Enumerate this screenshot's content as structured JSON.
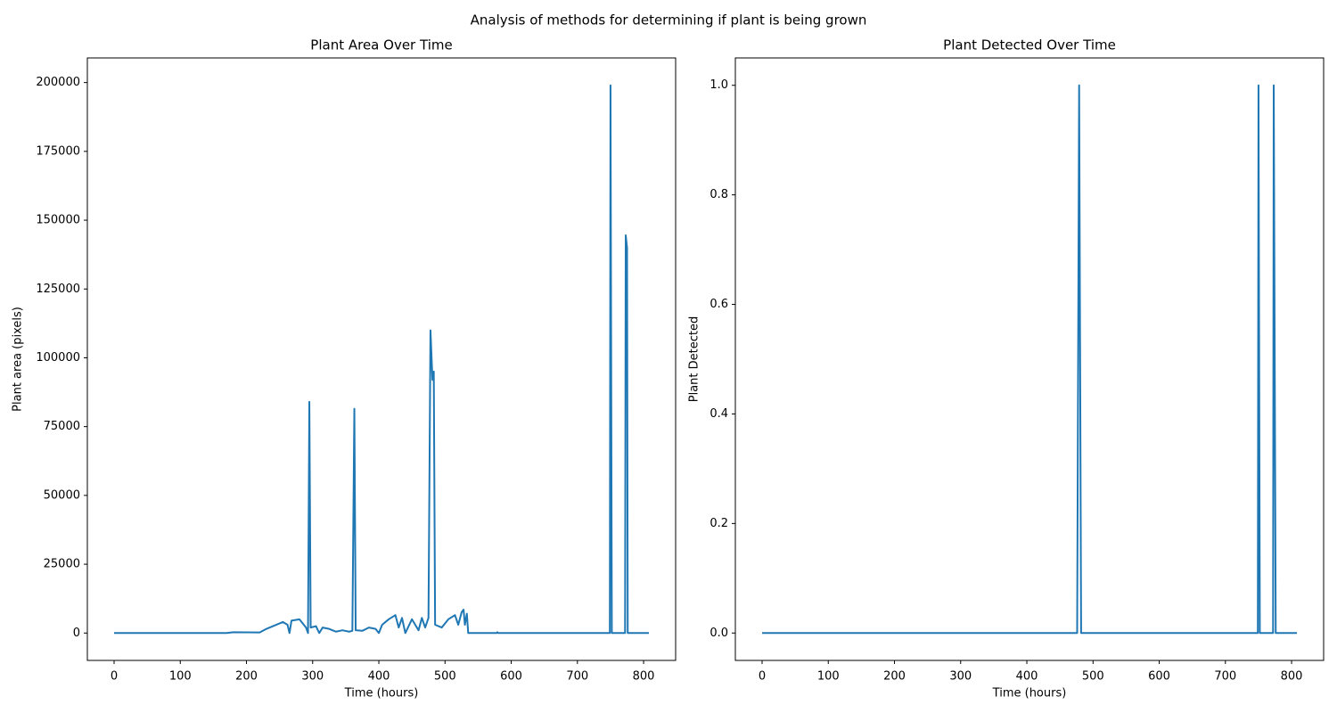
{
  "title": "Analysis of methods for determining if plant is being grown",
  "chart_data": [
    {
      "type": "line",
      "title": "Plant Area Over Time",
      "x_label": "Time (hours)",
      "y_label": "Plant area (pixels)",
      "color": "#1f77b4",
      "x": [
        0,
        170,
        180,
        220,
        230,
        240,
        255,
        262,
        265,
        268,
        280,
        290,
        293,
        295,
        297,
        305,
        310,
        315,
        325,
        335,
        345,
        355,
        360,
        363,
        365,
        375,
        385,
        395,
        400,
        405,
        415,
        425,
        430,
        435,
        440,
        450,
        455,
        460,
        465,
        470,
        475,
        478,
        481,
        483,
        485,
        495,
        505,
        515,
        520,
        525,
        528,
        530,
        533,
        535,
        578,
        579,
        580,
        749,
        750,
        752,
        772,
        773,
        775,
        776,
        808
      ],
      "values": [
        0,
        0,
        300,
        200,
        1500,
        2500,
        4000,
        3000,
        0,
        4500,
        5000,
        2000,
        0,
        84000,
        2000,
        2500,
        0,
        2000,
        1500,
        500,
        1000,
        500,
        800,
        81500,
        1000,
        800,
        2000,
        1500,
        0,
        3000,
        5000,
        6500,
        2000,
        5500,
        0,
        5000,
        3000,
        1000,
        5500,
        2000,
        5500,
        110000,
        92000,
        95000,
        3000,
        2000,
        5000,
        6500,
        3000,
        7500,
        8500,
        3000,
        7000,
        0,
        0,
        300,
        0,
        0,
        199000,
        0,
        0,
        144500,
        140000,
        0,
        0
      ],
      "xlim": [
        -40.4,
        848.4
      ],
      "xticks": [
        0,
        100,
        200,
        300,
        400,
        500,
        600,
        700,
        800
      ],
      "ylim": [
        -9950,
        208950
      ],
      "yticks": [
        0,
        25000,
        50000,
        75000,
        100000,
        125000,
        150000,
        175000,
        200000
      ]
    },
    {
      "type": "line",
      "title": "Plant Detected Over Time",
      "x_label": "Time (hours)",
      "y_label": "Plant Detected",
      "color": "#1f77b4",
      "x": [
        0,
        476,
        479,
        482,
        749,
        750,
        752,
        772,
        773,
        776,
        808
      ],
      "values": [
        0,
        0,
        1,
        0,
        0,
        1,
        0,
        0,
        1,
        0,
        0
      ],
      "xlim": [
        -40.4,
        848.4
      ],
      "xticks": [
        0,
        100,
        200,
        300,
        400,
        500,
        600,
        700,
        800
      ],
      "ylim": [
        -0.05,
        1.05
      ],
      "yticks": [
        {
          "value": 0,
          "label": "0.0"
        },
        0.2,
        0.4,
        0.6,
        0.8,
        {
          "value": 1,
          "label": "1.0"
        }
      ]
    }
  ]
}
